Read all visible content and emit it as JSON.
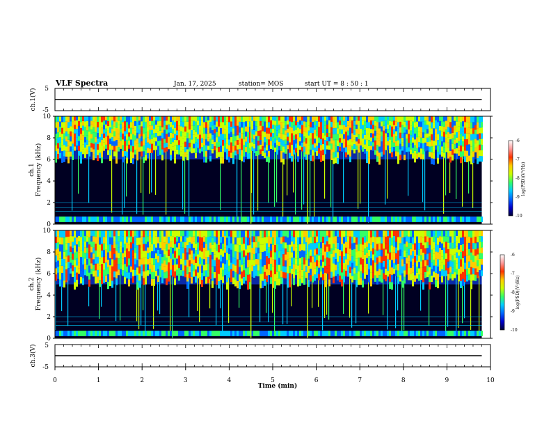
{
  "header": {
    "title": "VLF Spectra",
    "date": "Jan. 17, 2025",
    "station": "station= MOS",
    "start": "start  UT =  8 : 50 : 1"
  },
  "colors": {
    "colormap": [
      "#000033",
      "#0000cc",
      "#0066ff",
      "#00ccff",
      "#33ff66",
      "#ccff00",
      "#ffcc00",
      "#ff3300",
      "#ff9999",
      "#ffffff"
    ],
    "trace": "#000000"
  },
  "chart_data": [
    {
      "type": "line",
      "title": "ch.1(V)",
      "ylabel": "ch.1(V)",
      "ylim": [
        -5,
        5
      ],
      "yticks": [
        "5",
        "-5"
      ],
      "xlim": [
        0,
        10
      ],
      "series": [
        {
          "x": [
            0,
            9.8
          ],
          "values": [
            0,
            0
          ]
        }
      ]
    },
    {
      "type": "heatmap",
      "ylabel_line1": "ch.1",
      "ylabel_line2": "Frequency  (kHz)",
      "ylim": [
        0,
        10
      ],
      "yticks": [
        "0",
        "2",
        "4",
        "6",
        "8",
        "10"
      ],
      "xlim": [
        0,
        10
      ],
      "data_end_min": 9.8,
      "dominant_band_khz": [
        6,
        10
      ],
      "colorbar": {
        "label": "log(PSD)(V²/Hz)",
        "ticks": [
          "-6",
          "-7",
          "-8",
          "-9",
          "-10"
        ],
        "range": [
          -10,
          -6
        ]
      }
    },
    {
      "type": "heatmap",
      "ylabel_line1": "ch.2",
      "ylabel_line2": "Frequency  (kHz)",
      "ylim": [
        0,
        10
      ],
      "yticks": [
        "0",
        "2",
        "4",
        "6",
        "8",
        "10"
      ],
      "xlim": [
        0,
        10
      ],
      "data_end_min": 9.8,
      "dominant_band_khz": [
        5,
        10
      ],
      "colorbar": {
        "label": "log(PSD)(V²/Hz)",
        "ticks": [
          "-6",
          "-7",
          "-8",
          "-9",
          "-10"
        ],
        "range": [
          -10,
          -6
        ]
      }
    },
    {
      "type": "line",
      "title": "ch.3(V)",
      "ylabel": "ch.3(V)",
      "ylim": [
        -5,
        5
      ],
      "yticks": [
        "5",
        "-5"
      ],
      "xlim": [
        0,
        10
      ],
      "series": [
        {
          "x": [
            0,
            9.8
          ],
          "values": [
            0,
            0
          ]
        }
      ]
    }
  ],
  "xaxis": {
    "label": "Time  (min)",
    "ticks": [
      "0",
      "1",
      "2",
      "3",
      "4",
      "5",
      "6",
      "7",
      "8",
      "9",
      "10"
    ]
  }
}
